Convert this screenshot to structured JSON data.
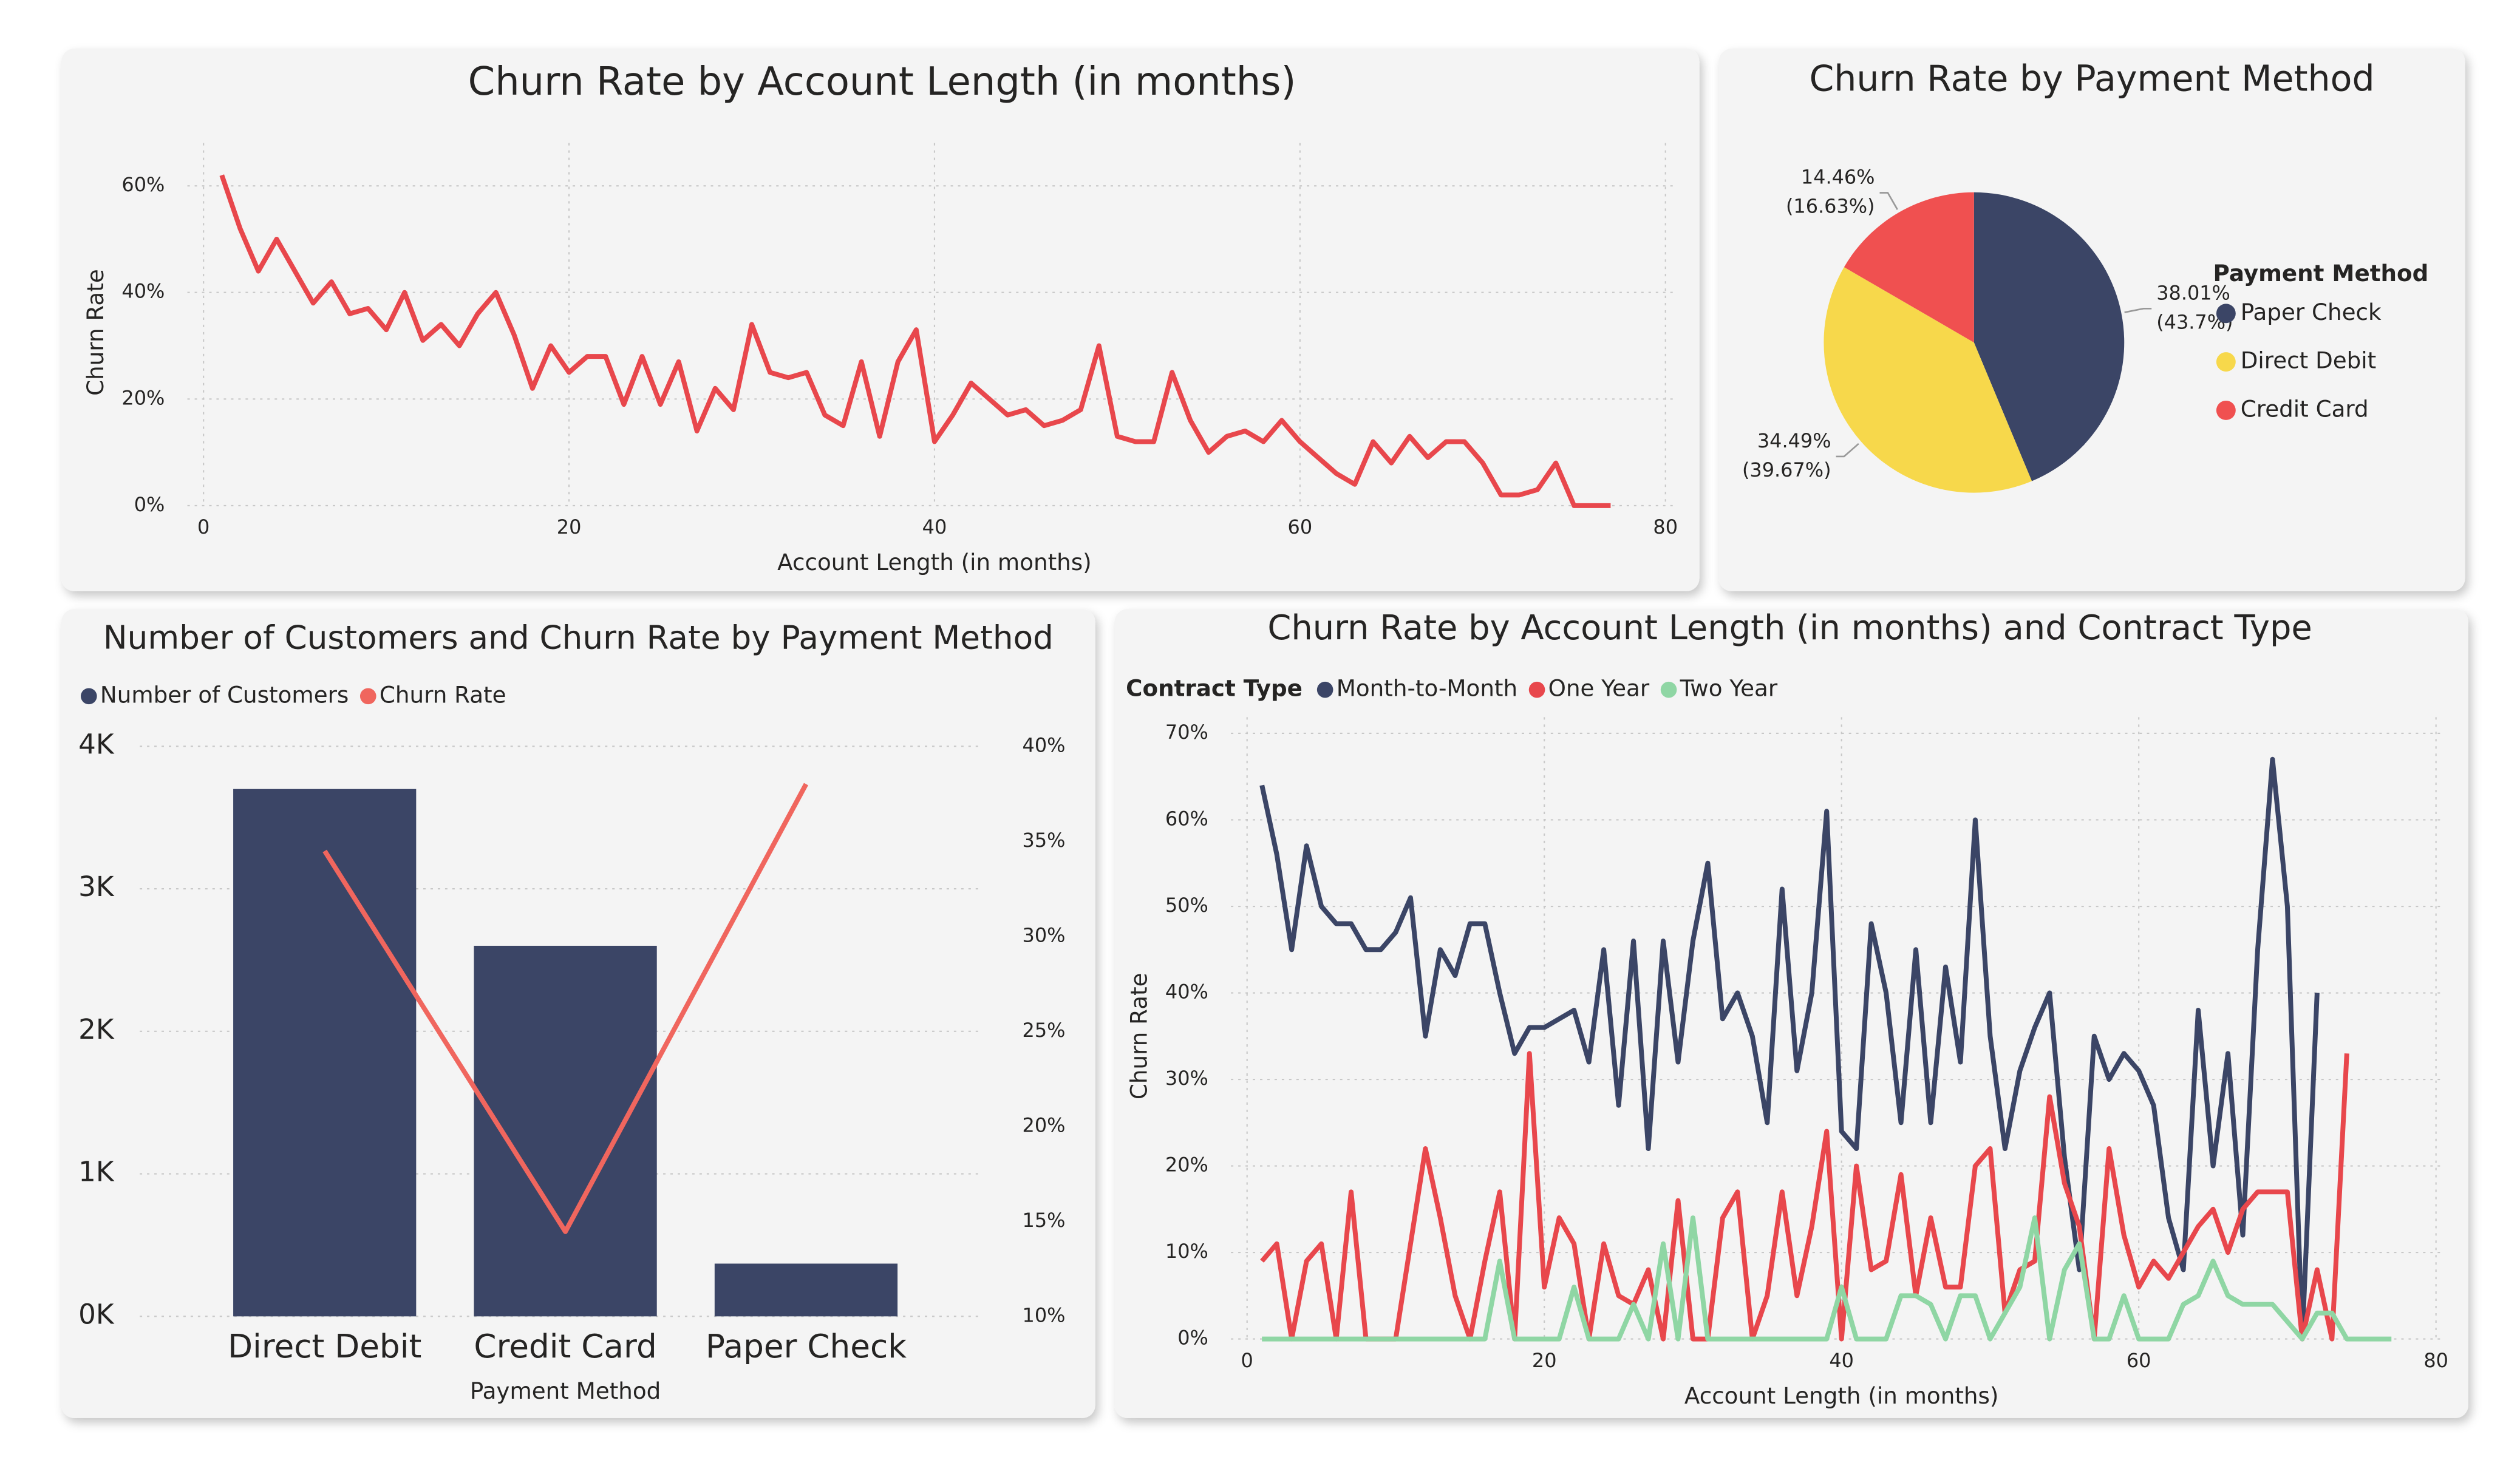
{
  "chart_data": [
    {
      "type": "line",
      "title": "Churn Rate by Account Length (in months)",
      "xlabel": "Account Length (in months)",
      "ylabel": "Churn Rate",
      "x": [
        1,
        2,
        3,
        4,
        5,
        6,
        7,
        8,
        9,
        10,
        11,
        12,
        13,
        14,
        15,
        16,
        17,
        18,
        19,
        20,
        21,
        22,
        23,
        24,
        25,
        26,
        27,
        28,
        29,
        30,
        31,
        32,
        33,
        34,
        35,
        36,
        37,
        38,
        39,
        40,
        41,
        42,
        43,
        44,
        45,
        46,
        47,
        48,
        49,
        50,
        51,
        52,
        53,
        54,
        55,
        56,
        57,
        58,
        59,
        60,
        61,
        62,
        63,
        64,
        65,
        66,
        67,
        68,
        69,
        70,
        71,
        72,
        73,
        74,
        75,
        76,
        77
      ],
      "values": [
        62,
        52,
        44,
        50,
        44,
        38,
        42,
        36,
        37,
        33,
        40,
        31,
        34,
        30,
        36,
        40,
        32,
        22,
        30,
        25,
        28,
        28,
        19,
        28,
        19,
        27,
        14,
        22,
        18,
        34,
        25,
        24,
        25,
        17,
        15,
        27,
        13,
        27,
        33,
        12,
        17,
        23,
        20,
        17,
        18,
        15,
        16,
        18,
        30,
        13,
        12,
        12,
        25,
        16,
        10,
        13,
        14,
        12,
        16,
        12,
        9,
        6,
        4,
        12,
        8,
        13,
        9,
        12,
        12,
        8,
        2,
        2,
        3,
        8,
        0,
        0,
        0
      ],
      "color": "#e8474c",
      "xlim": [
        0,
        80
      ],
      "xticks": [
        0,
        20,
        40,
        60,
        80
      ],
      "ylim": [
        0,
        65
      ],
      "yticks": [
        {
          "value": 0,
          "label": "0%"
        },
        {
          "value": 20,
          "label": "20%"
        },
        {
          "value": 40,
          "label": "40%"
        },
        {
          "value": 60,
          "label": "60%"
        }
      ],
      "grid": true
    },
    {
      "type": "pie",
      "title": "Churn Rate by Payment Method",
      "legend_title": "Payment Method",
      "categories": [
        "Paper Check",
        "Direct Debit",
        "Credit Card"
      ],
      "values": [
        38.01,
        34.49,
        14.46
      ],
      "value_labels": [
        "38.01%",
        "34.49%",
        "14.46%"
      ],
      "share_labels": [
        "(43.7%)",
        "(39.67%)",
        "(16.63%)"
      ],
      "colors": [
        "#3b4566",
        "#f7d84b",
        "#f05050"
      ]
    },
    {
      "type": "combo",
      "title": "Number of Customers and Churn Rate by Payment Method",
      "xlabel": "Payment Method",
      "categories": [
        "Direct Debit",
        "Credit Card",
        "Paper Check"
      ],
      "series": [
        {
          "name": "Number of Customers",
          "type": "bar",
          "color": "#3b4566",
          "values": [
            3700,
            2600,
            370
          ]
        },
        {
          "name": "Churn Rate",
          "type": "line",
          "axis": "y2",
          "color": "#f0665e",
          "values": [
            34.49,
            14.46,
            38.01
          ]
        }
      ],
      "ylim": [
        0,
        4000
      ],
      "yticks": [
        {
          "value": 0,
          "label": "0K"
        },
        {
          "value": 1000,
          "label": "1K"
        },
        {
          "value": 2000,
          "label": "2K"
        },
        {
          "value": 3000,
          "label": "3K"
        },
        {
          "value": 4000,
          "label": "4K"
        }
      ],
      "y2lim": [
        10,
        40
      ],
      "y2ticks": [
        {
          "value": 10,
          "label": "10%"
        },
        {
          "value": 15,
          "label": "15%"
        },
        {
          "value": 20,
          "label": "20%"
        },
        {
          "value": 25,
          "label": "25%"
        },
        {
          "value": 30,
          "label": "30%"
        },
        {
          "value": 35,
          "label": "35%"
        },
        {
          "value": 40,
          "label": "40%"
        }
      ],
      "grid": true
    },
    {
      "type": "line",
      "title": "Churn Rate by Account Length (in months) and Contract Type",
      "xlabel": "Account Length (in months)",
      "ylabel": "Churn Rate",
      "legend_title": "Contract Type",
      "x": [
        1,
        2,
        3,
        4,
        5,
        6,
        7,
        8,
        9,
        10,
        11,
        12,
        13,
        14,
        15,
        16,
        17,
        18,
        19,
        20,
        21,
        22,
        23,
        24,
        25,
        26,
        27,
        28,
        29,
        30,
        31,
        32,
        33,
        34,
        35,
        36,
        37,
        38,
        39,
        40,
        41,
        42,
        43,
        44,
        45,
        46,
        47,
        48,
        49,
        50,
        51,
        52,
        53,
        54,
        55,
        56,
        57,
        58,
        59,
        60,
        61,
        62,
        63,
        64,
        65,
        66,
        67,
        68,
        69,
        70,
        71,
        72,
        73,
        74,
        75,
        76,
        77
      ],
      "series": [
        {
          "name": "Month-to-Month",
          "color": "#3b4566",
          "values": [
            64,
            56,
            45,
            57,
            50,
            48,
            48,
            45,
            45,
            47,
            51,
            35,
            45,
            42,
            48,
            48,
            40,
            33,
            36,
            36,
            37,
            38,
            32,
            45,
            27,
            46,
            22,
            46,
            32,
            46,
            55,
            37,
            40,
            35,
            25,
            52,
            31,
            40,
            61,
            24,
            22,
            48,
            40,
            25,
            45,
            25,
            43,
            32,
            60,
            35,
            22,
            31,
            36,
            40,
            21,
            8,
            35,
            30,
            33,
            31,
            27,
            14,
            8,
            38,
            20,
            33,
            12,
            45,
            67,
            50,
            0,
            40,
            null,
            null,
            null,
            null,
            null
          ]
        },
        {
          "name": "One Year",
          "color": "#e8474c",
          "values": [
            9,
            11,
            0,
            9,
            11,
            0,
            17,
            0,
            0,
            0,
            11,
            22,
            14,
            5,
            0,
            9,
            17,
            0,
            33,
            6,
            14,
            11,
            0,
            11,
            5,
            4,
            8,
            0,
            16,
            0,
            0,
            14,
            17,
            0,
            5,
            17,
            5,
            13,
            24,
            0,
            20,
            8,
            9,
            19,
            5,
            14,
            6,
            6,
            20,
            22,
            3,
            8,
            9,
            28,
            18,
            13,
            0,
            22,
            12,
            6,
            9,
            7,
            10,
            13,
            15,
            10,
            15,
            17,
            17,
            17,
            0,
            8,
            0,
            33,
            null,
            null,
            null
          ]
        },
        {
          "name": "Two Year",
          "color": "#8fd6a4",
          "values": [
            0,
            0,
            0,
            0,
            0,
            0,
            0,
            0,
            0,
            0,
            0,
            0,
            0,
            0,
            0,
            0,
            9,
            0,
            0,
            0,
            0,
            6,
            0,
            0,
            0,
            4,
            0,
            11,
            0,
            14,
            0,
            0,
            0,
            0,
            0,
            0,
            0,
            0,
            0,
            6,
            0,
            0,
            0,
            5,
            5,
            4,
            0,
            5,
            5,
            0,
            3,
            6,
            14,
            0,
            8,
            11,
            0,
            0,
            5,
            0,
            0,
            0,
            4,
            5,
            9,
            5,
            4,
            4,
            4,
            2,
            0,
            3,
            3,
            0,
            0,
            0,
            0
          ]
        }
      ],
      "xlim": [
        0,
        80
      ],
      "xticks": [
        0,
        20,
        40,
        60,
        80
      ],
      "ylim": [
        0,
        70
      ],
      "yticks": [
        {
          "value": 0,
          "label": "0%"
        },
        {
          "value": 10,
          "label": "10%"
        },
        {
          "value": 20,
          "label": "20%"
        },
        {
          "value": 30,
          "label": "30%"
        },
        {
          "value": 40,
          "label": "40%"
        },
        {
          "value": 50,
          "label": "50%"
        },
        {
          "value": 60,
          "label": "60%"
        },
        {
          "value": 70,
          "label": "70%"
        }
      ],
      "grid": true
    }
  ]
}
